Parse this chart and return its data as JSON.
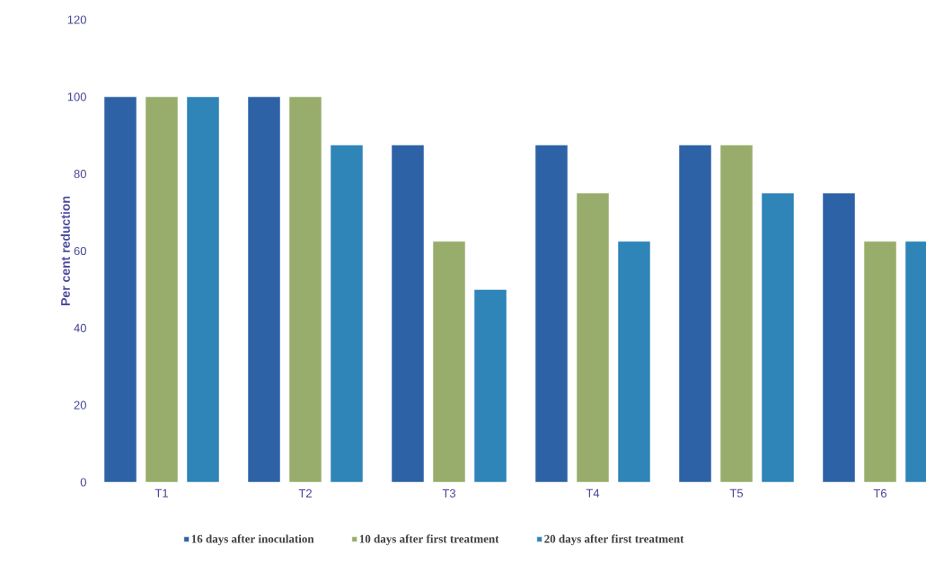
{
  "chart_data": {
    "type": "bar",
    "ylabel": "Per cent reduction",
    "categories": [
      "T1",
      "T2",
      "T3",
      "T4",
      "T5",
      "T6"
    ],
    "series": [
      {
        "name": "16 days after inoculation",
        "color": "#2e62a6",
        "values": [
          100,
          100,
          87.5,
          87.5,
          87.5,
          75
        ]
      },
      {
        "name": "10 days after first treatment",
        "color": "#98ad6c",
        "values": [
          100,
          100,
          62.5,
          75,
          87.5,
          62.5
        ]
      },
      {
        "name": "20 days after first treatment",
        "color": "#2f84b8",
        "values": [
          100,
          87.5,
          50,
          62.5,
          75,
          62.5
        ]
      }
    ],
    "ylim": [
      0,
      120
    ],
    "yticks": [
      0,
      20,
      40,
      60,
      80,
      100,
      120
    ],
    "grid": false,
    "legend": "bottom"
  }
}
